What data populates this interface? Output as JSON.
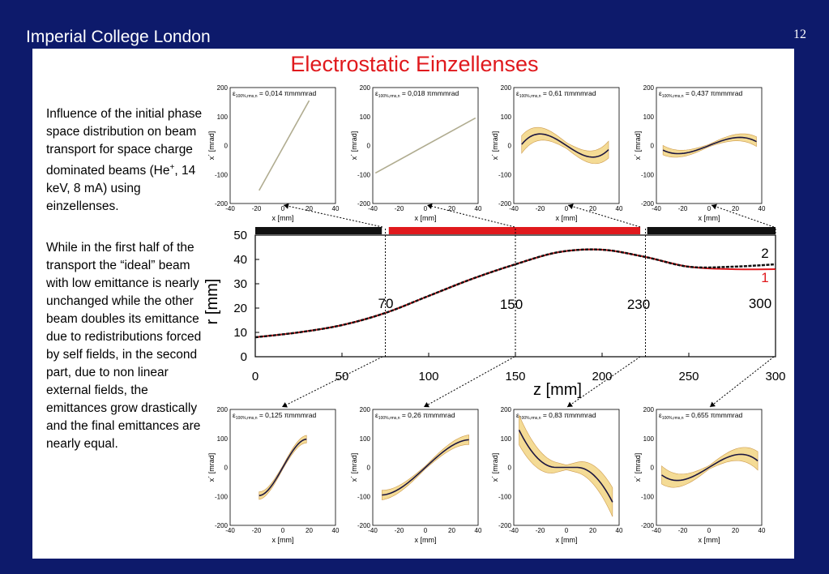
{
  "header": {
    "institution": "Imperial College London",
    "page_number": "12"
  },
  "title": "Electrostatic Einzellenses",
  "text": {
    "para1_pre": "Influence of the initial phase space distribution on beam transport for space charge dominated beams (He",
    "para1_sup": "+",
    "para1_post": ", 14 keV, 8 mA) using einzellenses.",
    "para2": "While in the first half of the transport the “ideal” beam with low emittance is nearly unchanged while the other beam doubles its emittance due to redistributions forced by self fields, in the second part, due to non linear external fields, the emittances grow drastically and the final emittances are nearly equal."
  },
  "phase_plot_common": {
    "xlabel": "x [mm]",
    "ylabel": "x´ [mrad]",
    "xticks": [
      "-40",
      "-20",
      "0",
      "20",
      "40"
    ],
    "yticks": [
      "200",
      "100",
      "0",
      "-100",
      "-200"
    ],
    "emit_prefix": "ε",
    "emit_sub": "100%,rms,n",
    "emit_unit": " πmmmrad"
  },
  "phase_plots_top": [
    {
      "emittance": "= 0,014",
      "at_z": 70
    },
    {
      "emittance": "= 0,018",
      "at_z": 150
    },
    {
      "emittance": "= 0,61",
      "at_z": 230
    },
    {
      "emittance": "= 0,437",
      "at_z": 300
    }
  ],
  "phase_plots_bottom": [
    {
      "emittance": "= 0,125",
      "at_z": 70
    },
    {
      "emittance": "= 0,26",
      "at_z": 150
    },
    {
      "emittance": "= 0,83",
      "at_z": 230
    },
    {
      "emittance": "= 0,655",
      "at_z": 300
    }
  ],
  "colors": {
    "title": "#e0191d",
    "background": "#0d1a6b",
    "lens_black": "#111111",
    "lens_red": "#e0191d"
  },
  "chart_data": {
    "type": "line",
    "xlabel": "z [mm]",
    "ylabel": "r [mm]",
    "xlim": [
      0,
      300
    ],
    "ylim": [
      0,
      50
    ],
    "xticks": [
      "0",
      "50",
      "100",
      "150",
      "200",
      "250",
      "300"
    ],
    "yticks": [
      "0",
      "10",
      "20",
      "30",
      "40",
      "50"
    ],
    "series": [
      {
        "name": "2",
        "color": "#111111",
        "x": [
          0,
          25,
          50,
          75,
          100,
          125,
          150,
          175,
          200,
          225,
          250,
          275,
          300
        ],
        "y": [
          8,
          10,
          13,
          18,
          25,
          32,
          38,
          43,
          44,
          41,
          37,
          37,
          38
        ]
      },
      {
        "name": "1",
        "color": "#e0191d",
        "x": [
          0,
          25,
          50,
          75,
          100,
          125,
          150,
          175,
          200,
          225,
          250,
          275,
          300
        ],
        "y": [
          8,
          10,
          13,
          18,
          25,
          32,
          38,
          43,
          44,
          41,
          37,
          36,
          36
        ]
      }
    ],
    "markers": [
      {
        "z": 75,
        "label": "70"
      },
      {
        "z": 150,
        "label": "150"
      },
      {
        "z": 225,
        "label": "230"
      },
      {
        "z": 300,
        "label": "300"
      }
    ],
    "lens_segments": [
      {
        "from": 0,
        "to": 73,
        "color": "black"
      },
      {
        "from": 77,
        "to": 222,
        "color": "red"
      },
      {
        "from": 226,
        "to": 300,
        "color": "black"
      }
    ],
    "grid": false
  }
}
